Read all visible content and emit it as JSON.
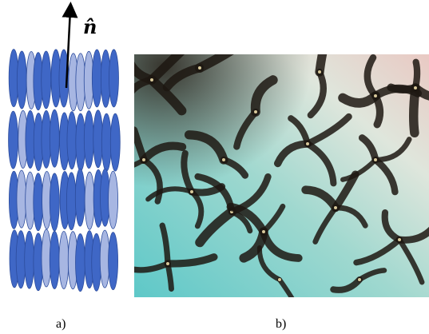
{
  "panels": [
    {
      "label": "a)",
      "director_label": "n̂"
    },
    {
      "label": "b)"
    }
  ]
}
